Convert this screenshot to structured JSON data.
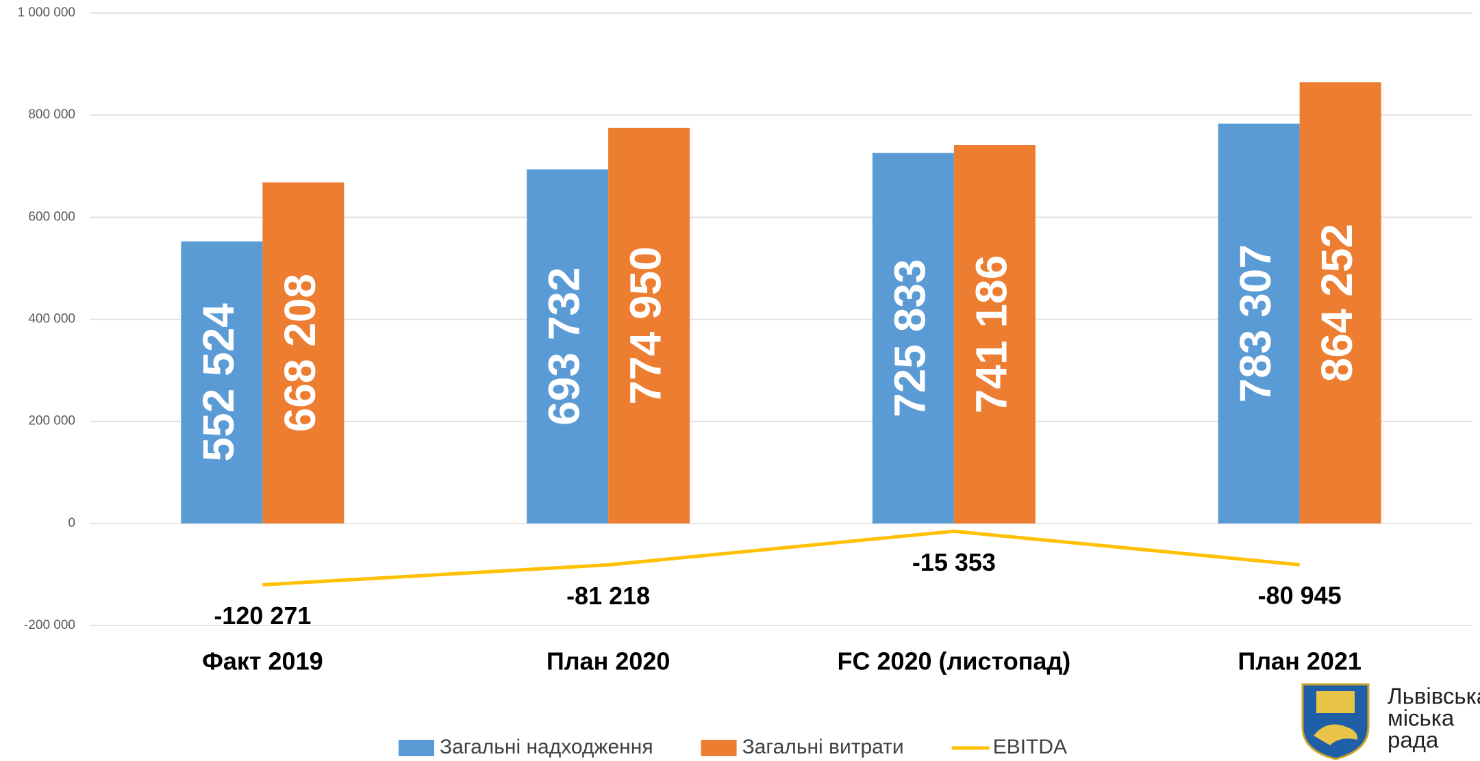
{
  "chart_data": {
    "type": "bar",
    "categories": [
      "Факт 2019",
      "План 2020",
      "FC 2020 (листопад)",
      "План 2021"
    ],
    "series": [
      {
        "name": "Загальні надходження",
        "color": "#5b9bd5",
        "values": [
          552524,
          693732,
          725833,
          783307
        ],
        "value_labels": [
          "552 524",
          "693 732",
          "725 833",
          "783 307"
        ]
      },
      {
        "name": "Загальні витрати",
        "color": "#ed7d31",
        "values": [
          668208,
          774950,
          741186,
          864252
        ],
        "value_labels": [
          "668 208",
          "774 950",
          "741 186",
          "864 252"
        ]
      },
      {
        "name": "EBITDA",
        "type": "line",
        "color": "#ffc000",
        "values": [
          -120271,
          -81218,
          -15353,
          -80945
        ],
        "value_labels": [
          "-120 271",
          "-81 218",
          "-15 353",
          "-80 945"
        ]
      }
    ],
    "ylim": [
      -200000,
      1000000
    ],
    "yticks": [
      {
        "value": -200000,
        "label": "-200 000"
      },
      0,
      {
        "value": 200000,
        "label": "200 000"
      },
      {
        "value": 400000,
        "label": "400 000"
      },
      {
        "value": 600000,
        "label": "600 000"
      },
      {
        "value": 800000,
        "label": "800 000"
      },
      {
        "value": 1000000,
        "label": "1 000 000"
      }
    ],
    "grid": true,
    "legend": "bottom"
  },
  "logo": {
    "lines": [
      "Львівська",
      "міська",
      "рада"
    ]
  }
}
